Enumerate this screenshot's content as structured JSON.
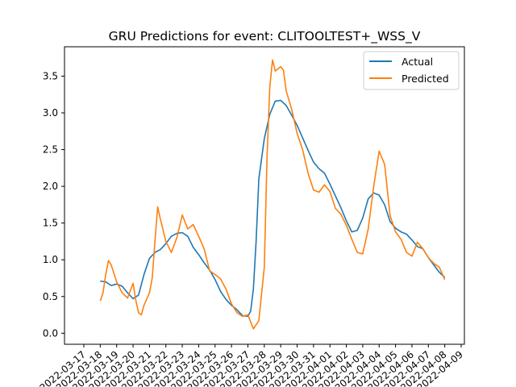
{
  "chart_data": {
    "type": "line",
    "title": "GRU Predictions for event: CLITOOLTEST+_WSS_V",
    "xlabel": "",
    "ylabel": "",
    "grid": false,
    "legend_position": "top-right",
    "xlim": [
      "2022-03-17",
      "2022-04-09"
    ],
    "ylim": [
      -0.15,
      3.9
    ],
    "x_ticks": [
      "2022-03-17",
      "2022-03-18",
      "2022-03-19",
      "2022-03-20",
      "2022-03-21",
      "2022-03-22",
      "2022-03-23",
      "2022-03-24",
      "2022-03-25",
      "2022-03-26",
      "2022-03-27",
      "2022-03-28",
      "2022-03-29",
      "2022-03-30",
      "2022-03-31",
      "2022-04-01",
      "2022-04-02",
      "2022-04-03",
      "2022-04-04",
      "2022-04-05",
      "2022-04-06",
      "2022-04-07",
      "2022-04-08",
      "2022-04-09"
    ],
    "y_ticks": [
      "0.0",
      "0.5",
      "1.0",
      "1.5",
      "2.0",
      "2.5",
      "3.0",
      "3.5"
    ],
    "series": [
      {
        "name": "Actual",
        "color": "#1f77b4",
        "points": [
          [
            "2022-03-18",
            0.71
          ],
          [
            "2022-03-18 08:00",
            0.7
          ],
          [
            "2022-03-18 16:00",
            0.65
          ],
          [
            "2022-03-19",
            0.67
          ],
          [
            "2022-03-19 08:00",
            0.64
          ],
          [
            "2022-03-19 16:00",
            0.55
          ],
          [
            "2022-03-20",
            0.47
          ],
          [
            "2022-03-20 08:00",
            0.52
          ],
          [
            "2022-03-20 16:00",
            0.8
          ],
          [
            "2022-03-21",
            1.02
          ],
          [
            "2022-03-21 08:00",
            1.1
          ],
          [
            "2022-03-21 16:00",
            1.14
          ],
          [
            "2022-03-22",
            1.22
          ],
          [
            "2022-03-22 08:00",
            1.32
          ],
          [
            "2022-03-22 16:00",
            1.36
          ],
          [
            "2022-03-23",
            1.37
          ],
          [
            "2022-03-23 08:00",
            1.32
          ],
          [
            "2022-03-23 16:00",
            1.17
          ],
          [
            "2022-03-24",
            1.07
          ],
          [
            "2022-03-24 08:00",
            0.96
          ],
          [
            "2022-03-24 16:00",
            0.86
          ],
          [
            "2022-03-25",
            0.73
          ],
          [
            "2022-03-25 08:00",
            0.57
          ],
          [
            "2022-03-25 16:00",
            0.46
          ],
          [
            "2022-03-26",
            0.38
          ],
          [
            "2022-03-26 08:00",
            0.32
          ],
          [
            "2022-03-26 16:00",
            0.24
          ],
          [
            "2022-03-27",
            0.23
          ],
          [
            "2022-03-27 04:00",
            0.3
          ],
          [
            "2022-03-27 08:00",
            0.6
          ],
          [
            "2022-03-27 12:00",
            1.25
          ],
          [
            "2022-03-27 16:00",
            2.1
          ],
          [
            "2022-03-28",
            2.65
          ],
          [
            "2022-03-28 08:00",
            2.98
          ],
          [
            "2022-03-28 16:00",
            3.16
          ],
          [
            "2022-03-29",
            3.17
          ],
          [
            "2022-03-29 08:00",
            3.1
          ],
          [
            "2022-03-29 16:00",
            2.97
          ],
          [
            "2022-03-30",
            2.83
          ],
          [
            "2022-03-30 08:00",
            2.66
          ],
          [
            "2022-03-30 16:00",
            2.49
          ],
          [
            "2022-03-31",
            2.33
          ],
          [
            "2022-03-31 08:00",
            2.24
          ],
          [
            "2022-03-31 16:00",
            2.18
          ],
          [
            "2022-04-01",
            2.03
          ],
          [
            "2022-04-01 08:00",
            1.87
          ],
          [
            "2022-04-01 16:00",
            1.71
          ],
          [
            "2022-04-02",
            1.53
          ],
          [
            "2022-04-02 08:00",
            1.38
          ],
          [
            "2022-04-02 16:00",
            1.4
          ],
          [
            "2022-04-03",
            1.57
          ],
          [
            "2022-04-03 08:00",
            1.83
          ],
          [
            "2022-04-03 16:00",
            1.91
          ],
          [
            "2022-04-04",
            1.88
          ],
          [
            "2022-04-04 08:00",
            1.75
          ],
          [
            "2022-04-04 16:00",
            1.52
          ],
          [
            "2022-04-05",
            1.43
          ],
          [
            "2022-04-05 08:00",
            1.38
          ],
          [
            "2022-04-05 16:00",
            1.35
          ],
          [
            "2022-04-06",
            1.27
          ],
          [
            "2022-04-06 08:00",
            1.18
          ],
          [
            "2022-04-06 16:00",
            1.15
          ],
          [
            "2022-04-07",
            1.03
          ],
          [
            "2022-04-07 08:00",
            0.93
          ],
          [
            "2022-04-07 16:00",
            0.83
          ],
          [
            "2022-04-08",
            0.76
          ]
        ]
      },
      {
        "name": "Predicted",
        "color": "#ff7f0e",
        "points": [
          [
            "2022-03-18",
            0.44
          ],
          [
            "2022-03-18 04:00",
            0.55
          ],
          [
            "2022-03-18 08:00",
            0.8
          ],
          [
            "2022-03-18 12:00",
            0.99
          ],
          [
            "2022-03-18 16:00",
            0.93
          ],
          [
            "2022-03-19",
            0.7
          ],
          [
            "2022-03-19 08:00",
            0.55
          ],
          [
            "2022-03-19 16:00",
            0.48
          ],
          [
            "2022-03-20",
            0.68
          ],
          [
            "2022-03-20 04:00",
            0.45
          ],
          [
            "2022-03-20 08:00",
            0.28
          ],
          [
            "2022-03-20 12:00",
            0.25
          ],
          [
            "2022-03-20 16:00",
            0.38
          ],
          [
            "2022-03-21",
            0.55
          ],
          [
            "2022-03-21 04:00",
            0.75
          ],
          [
            "2022-03-21 08:00",
            1.25
          ],
          [
            "2022-03-21 12:00",
            1.72
          ],
          [
            "2022-03-21 16:00",
            1.55
          ],
          [
            "2022-03-22",
            1.25
          ],
          [
            "2022-03-22 08:00",
            1.1
          ],
          [
            "2022-03-22 16:00",
            1.3
          ],
          [
            "2022-03-23",
            1.61
          ],
          [
            "2022-03-23 08:00",
            1.42
          ],
          [
            "2022-03-23 16:00",
            1.48
          ],
          [
            "2022-03-24",
            1.32
          ],
          [
            "2022-03-24 08:00",
            1.15
          ],
          [
            "2022-03-24 16:00",
            0.85
          ],
          [
            "2022-03-25",
            0.8
          ],
          [
            "2022-03-25 08:00",
            0.74
          ],
          [
            "2022-03-25 16:00",
            0.6
          ],
          [
            "2022-03-26",
            0.4
          ],
          [
            "2022-03-26 08:00",
            0.28
          ],
          [
            "2022-03-26 16:00",
            0.23
          ],
          [
            "2022-03-27",
            0.25
          ],
          [
            "2022-03-27 08:00",
            0.06
          ],
          [
            "2022-03-27 16:00",
            0.17
          ],
          [
            "2022-03-28",
            0.9
          ],
          [
            "2022-03-28 04:00",
            2.4
          ],
          [
            "2022-03-28 08:00",
            3.35
          ],
          [
            "2022-03-28 12:00",
            3.72
          ],
          [
            "2022-03-28 16:00",
            3.57
          ],
          [
            "2022-03-29",
            3.63
          ],
          [
            "2022-03-29 04:00",
            3.58
          ],
          [
            "2022-03-29 08:00",
            3.3
          ],
          [
            "2022-03-29 16:00",
            3.05
          ],
          [
            "2022-03-30",
            2.72
          ],
          [
            "2022-03-30 08:00",
            2.5
          ],
          [
            "2022-03-30 16:00",
            2.18
          ],
          [
            "2022-03-31",
            1.95
          ],
          [
            "2022-03-31 08:00",
            1.92
          ],
          [
            "2022-03-31 16:00",
            2.02
          ],
          [
            "2022-04-01",
            1.93
          ],
          [
            "2022-04-01 08:00",
            1.7
          ],
          [
            "2022-04-01 16:00",
            1.62
          ],
          [
            "2022-04-02",
            1.47
          ],
          [
            "2022-04-02 08:00",
            1.28
          ],
          [
            "2022-04-02 16:00",
            1.1
          ],
          [
            "2022-04-03",
            1.08
          ],
          [
            "2022-04-03 08:00",
            1.42
          ],
          [
            "2022-04-03 16:00",
            2.0
          ],
          [
            "2022-04-04",
            2.48
          ],
          [
            "2022-04-04 08:00",
            2.3
          ],
          [
            "2022-04-04 16:00",
            1.6
          ],
          [
            "2022-04-05",
            1.38
          ],
          [
            "2022-04-05 08:00",
            1.28
          ],
          [
            "2022-04-05 16:00",
            1.1
          ],
          [
            "2022-04-06",
            1.05
          ],
          [
            "2022-04-06 08:00",
            1.24
          ],
          [
            "2022-04-06 16:00",
            1.15
          ],
          [
            "2022-04-07",
            1.03
          ],
          [
            "2022-04-07 08:00",
            0.95
          ],
          [
            "2022-04-07 16:00",
            0.9
          ],
          [
            "2022-04-08",
            0.73
          ]
        ]
      }
    ]
  }
}
